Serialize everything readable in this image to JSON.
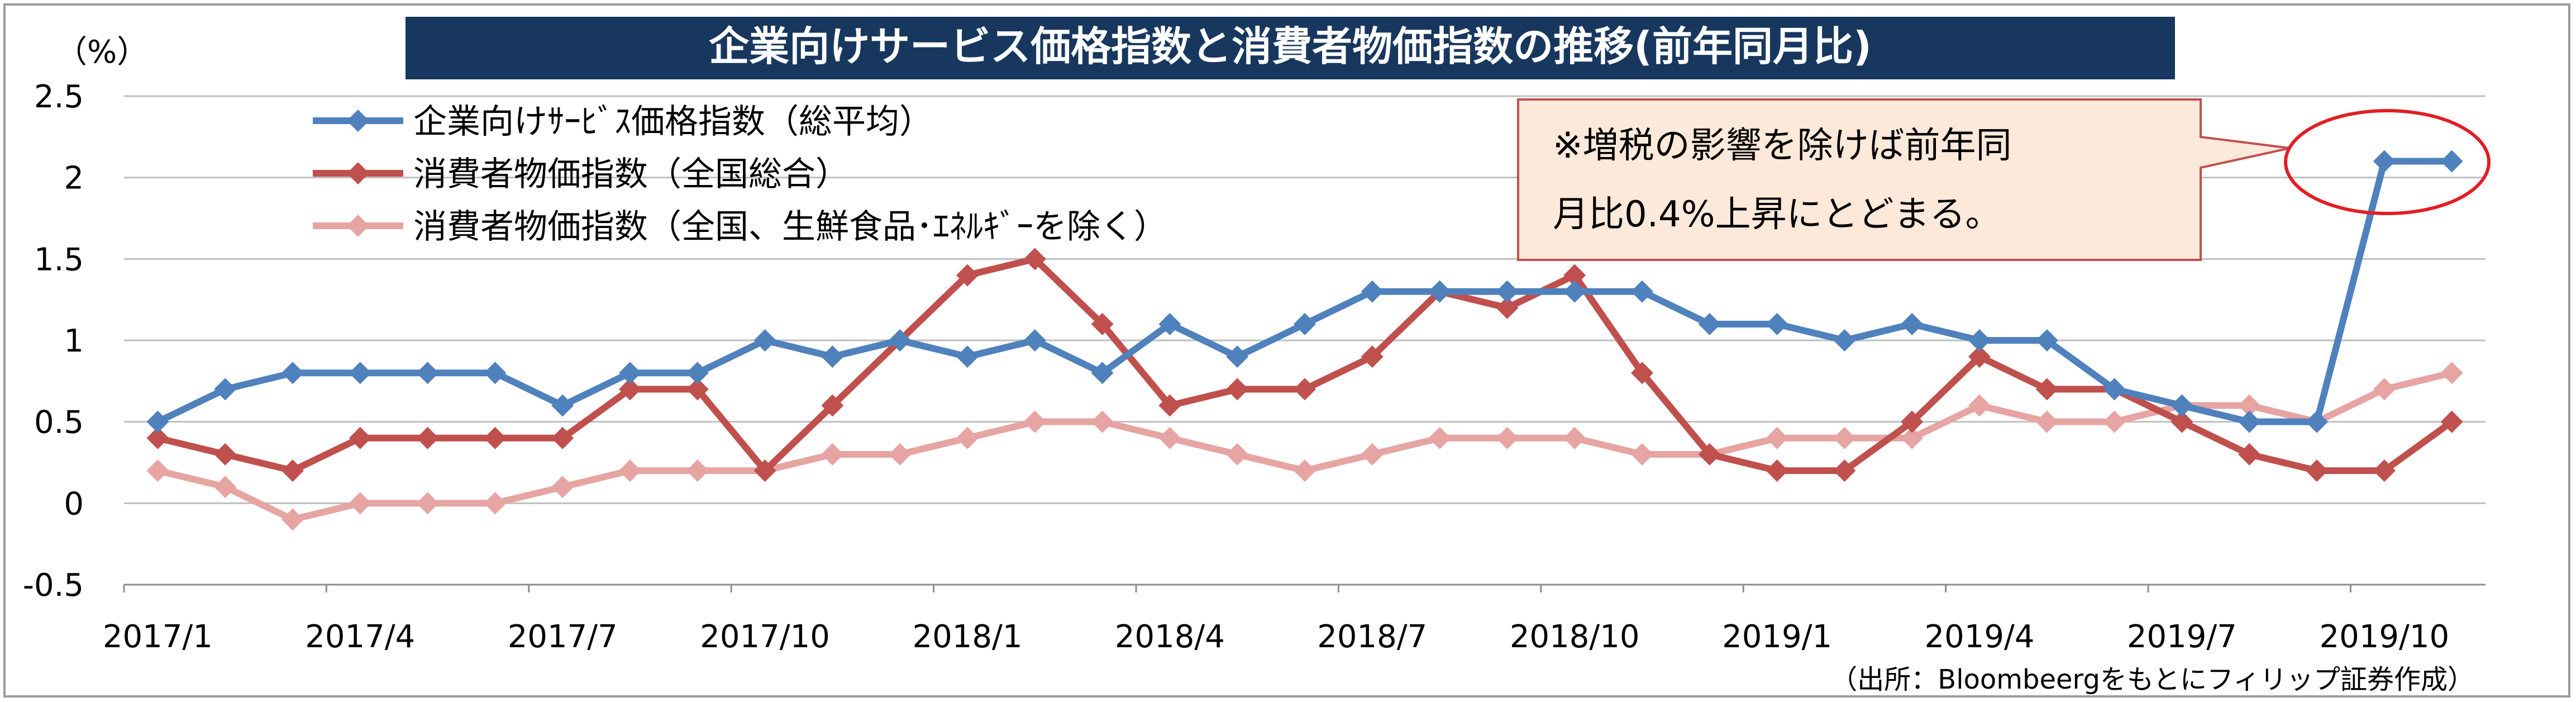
{
  "chart_data": {
    "type": "line",
    "title": "企業向けサービス価格指数と消費者物価指数の推移(前年同月比)",
    "unit_label": "（%）",
    "source_note": "（出所：Bloombeergをもとにフィリップ証券作成）",
    "annotation": {
      "line1": "※増税の影響を除けば前年同",
      "line2": "月比0.4%上昇にとどまる。"
    },
    "ylim": [
      -0.5,
      2.5
    ],
    "yticks": [
      "2.5",
      "2",
      "1.5",
      "1",
      "0.5",
      "0",
      "-0.5"
    ],
    "ytick_values": [
      2.5,
      2,
      1.5,
      1,
      0.5,
      0,
      -0.5
    ],
    "x": [
      "2017/1",
      "2017/2",
      "2017/3",
      "2017/4",
      "2017/5",
      "2017/6",
      "2017/7",
      "2017/8",
      "2017/9",
      "2017/10",
      "2017/11",
      "2017/12",
      "2018/1",
      "2018/2",
      "2018/3",
      "2018/4",
      "2018/5",
      "2018/6",
      "2018/7",
      "2018/8",
      "2018/9",
      "2018/10",
      "2018/11",
      "2018/12",
      "2019/1",
      "2019/2",
      "2019/3",
      "2019/4",
      "2019/5",
      "2019/6",
      "2019/7",
      "2019/8",
      "2019/9",
      "2019/10",
      "2019/11"
    ],
    "xtick_labels": [
      "2017/1",
      "2017/4",
      "2017/7",
      "2017/10",
      "2018/1",
      "2018/4",
      "2018/7",
      "2018/10",
      "2019/1",
      "2019/4",
      "2019/7",
      "2019/10"
    ],
    "grid": "horizontal",
    "legend_position": "top-left",
    "colors": {
      "title_bg": "#17375e",
      "annotation_bg": "#fde9d9",
      "annotation_border": "#c0504d",
      "highlight_ellipse": "#e31e24"
    },
    "series": [
      {
        "name": "企業向けｻｰﾋﾞｽ価格指数（総平均）",
        "color": "#4f81bd",
        "values": [
          0.5,
          0.7,
          0.8,
          0.8,
          0.8,
          0.8,
          0.6,
          0.8,
          0.8,
          1.0,
          0.9,
          1.0,
          0.9,
          1.0,
          0.8,
          1.1,
          0.9,
          1.1,
          1.3,
          1.3,
          1.3,
          1.3,
          1.3,
          1.1,
          1.1,
          1.0,
          1.1,
          1.0,
          1.0,
          0.7,
          0.6,
          0.5,
          0.5,
          2.1,
          2.1
        ]
      },
      {
        "name": "消費者物価指数（全国総合）",
        "color": "#c0504d",
        "values": [
          0.4,
          0.3,
          0.2,
          0.4,
          0.4,
          0.4,
          0.4,
          0.7,
          0.7,
          0.2,
          0.6,
          1.0,
          1.4,
          1.5,
          1.1,
          0.6,
          0.7,
          0.7,
          0.9,
          1.3,
          1.2,
          1.4,
          0.8,
          0.3,
          0.2,
          0.2,
          0.5,
          0.9,
          0.7,
          0.7,
          0.5,
          0.3,
          0.2,
          0.2,
          0.5
        ]
      },
      {
        "name": "消費者物価指数（全国、生鮮食品･ｴﾈﾙｷﾞｰを除く）",
        "color": "#e6a4a3",
        "values": [
          0.2,
          0.1,
          -0.1,
          0.0,
          0.0,
          0.0,
          0.1,
          0.2,
          0.2,
          0.2,
          0.3,
          0.3,
          0.4,
          0.5,
          0.5,
          0.4,
          0.3,
          0.2,
          0.3,
          0.4,
          0.4,
          0.4,
          0.3,
          0.3,
          0.4,
          0.4,
          0.4,
          0.6,
          0.5,
          0.5,
          0.6,
          0.6,
          0.5,
          0.7,
          0.8
        ]
      }
    ]
  }
}
